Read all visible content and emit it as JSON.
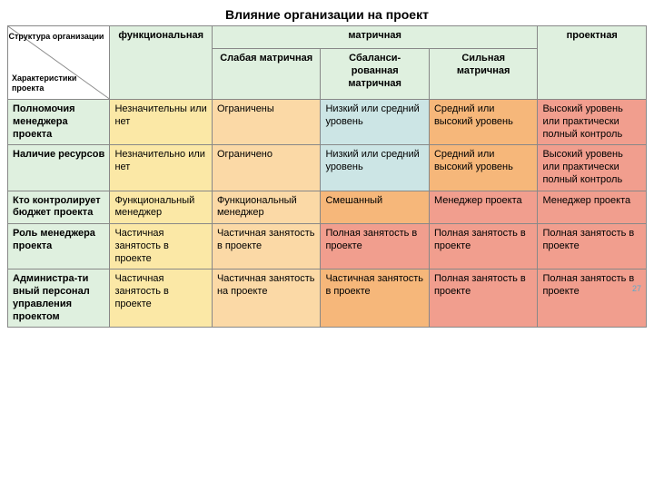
{
  "title": "Влияние организации на проект",
  "corner": {
    "top": "Структура организации",
    "bottom": "Характеристики проекта"
  },
  "headers": {
    "functional": "функциональная",
    "matrix": "матричная",
    "project": "проектная",
    "matrix_weak": "Слабая матричная",
    "matrix_balanced": "Сбаланси-рованная матричная",
    "matrix_strong": "Сильная матричная"
  },
  "rows": [
    {
      "label": "Полномочия менеджера проекта",
      "cells": [
        "Незначительны или нет",
        "Ограничены",
        "Низкий или средний уровень",
        "Средний или высокий уровень",
        "Высокий уровень или практически полный контроль"
      ]
    },
    {
      "label": "Наличие ресурсов",
      "cells": [
        "Незначительно или нет",
        "Ограничено",
        "Низкий или средний уровень",
        "Средний или высокий уровень",
        "Высокий уровень или практически полный контроль"
      ]
    },
    {
      "label": "Кто контролирует бюджет проекта",
      "cells": [
        "Функциональный менеджер",
        "Функциональный менеджер",
        "Смешанный",
        "Менеджер проекта",
        "Менеджер проекта"
      ]
    },
    {
      "label": "Роль менеджера проекта",
      "cells": [
        "Частичная занятость в проекте",
        "Частичная занятость в проекте",
        "Полная занятость в проекте",
        "Полная занятость в проекте",
        "Полная занятость в проекте"
      ]
    },
    {
      "label": "Администра-ти вный персонал управления проектом",
      "cells": [
        "Частичная занятость в проекте",
        "Частичная занятость на проекте",
        "Частичная занятость в проекте",
        "Полная занятость в проекте",
        "Полная занятость в проекте"
      ]
    }
  ],
  "colors": {
    "header_green": "#dff0df",
    "row_label": "#dff0df",
    "yellow": "#fbe8a6",
    "orange_light": "#fbd9a6",
    "blue_light": "#cce5e5",
    "orange": "#f6b77a",
    "red_light": "#f19e8e",
    "page_num": "#5fa9c9"
  },
  "col_widths": [
    "16%",
    "16%",
    "17%",
    "17%",
    "17%",
    "17%"
  ],
  "page_number": "27",
  "color_map": [
    [
      "yellow",
      "orange_light",
      "blue_light",
      "orange",
      "red_light"
    ],
    [
      "yellow",
      "orange_light",
      "blue_light",
      "orange",
      "red_light"
    ],
    [
      "yellow",
      "orange_light",
      "orange",
      "red_light",
      "red_light"
    ],
    [
      "yellow",
      "orange_light",
      "red_light",
      "red_light",
      "red_light"
    ],
    [
      "yellow",
      "orange_light",
      "orange",
      "red_light",
      "red_light"
    ]
  ]
}
